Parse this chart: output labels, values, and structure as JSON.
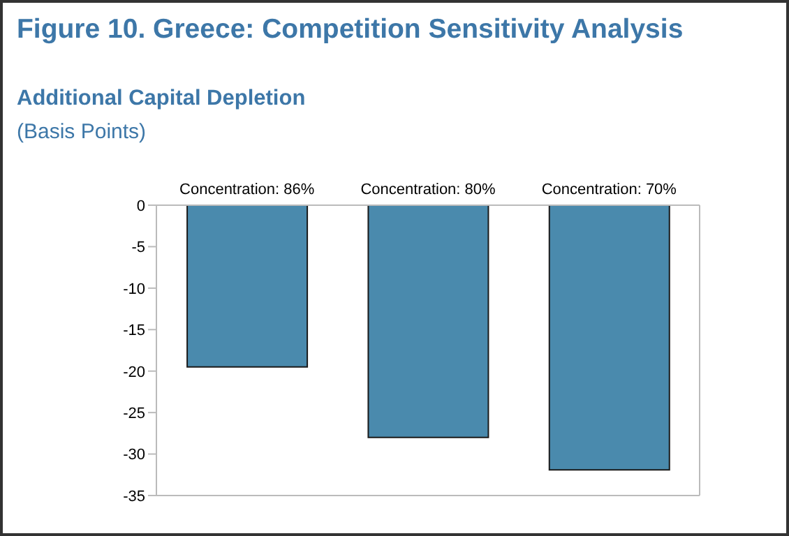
{
  "chart_data": {
    "type": "bar",
    "title": "Figure 10. Greece: Competition Sensitivity Analysis",
    "subtitle": "Additional Capital Depletion",
    "ylabel": "(Basis Points)",
    "categories": [
      "Concentration: 86%",
      "Concentration: 80%",
      "Concentration: 70%"
    ],
    "values": [
      -19.5,
      -28,
      -31.9
    ],
    "color": "#4a8aad",
    "ylim": [
      -35,
      0
    ],
    "yticks": [
      0,
      -5,
      -10,
      -15,
      -20,
      -25,
      -30,
      -35
    ]
  }
}
